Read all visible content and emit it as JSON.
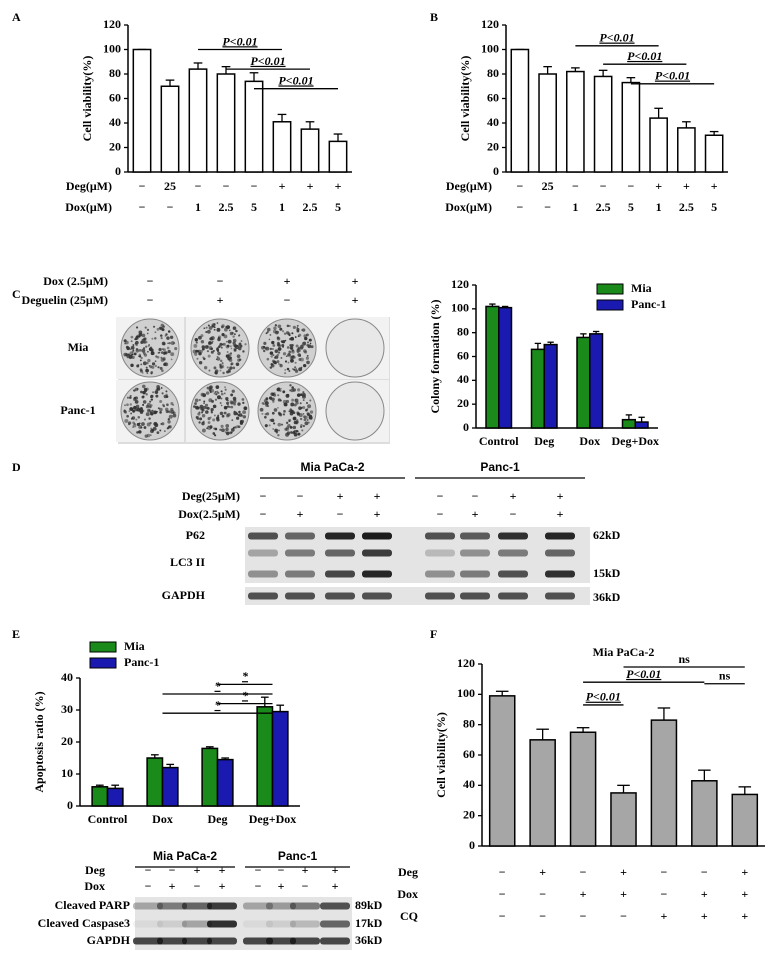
{
  "chart_data": [
    {
      "type": "bar",
      "panel": "A",
      "y_label": "Cell viability(%)",
      "ylim": [
        0,
        120
      ],
      "yticks": [
        0,
        20,
        40,
        60,
        80,
        100,
        120
      ],
      "series": [
        {
          "color": "#ffffff",
          "values": [
            100,
            70,
            84,
            80,
            74,
            41,
            35,
            25
          ],
          "errors": [
            0,
            5,
            5,
            6,
            7,
            6,
            6,
            6
          ]
        }
      ],
      "conditions": [
        {
          "label": "Deg(μM)",
          "values": [
            "−",
            "25",
            "−",
            "−",
            "−",
            "+",
            "+",
            "+"
          ]
        },
        {
          "label": "Dox(μM)",
          "values": [
            "−",
            "−",
            "1",
            "2.5",
            "5",
            "1",
            "2.5",
            "5"
          ]
        }
      ],
      "annotations": [
        {
          "text": "P<0.01",
          "color": "#cc0000"
        },
        {
          "text": "P<0.01",
          "color": "#cc0000"
        },
        {
          "text": "P<0.01",
          "color": "#cc0000"
        }
      ]
    },
    {
      "type": "bar",
      "panel": "B",
      "y_label": "Cell viability(%)",
      "ylim": [
        0,
        120
      ],
      "yticks": [
        0,
        20,
        40,
        60,
        80,
        100,
        120
      ],
      "series": [
        {
          "color": "#ffffff",
          "values": [
            100,
            80,
            82,
            78,
            73,
            44,
            36,
            30
          ],
          "errors": [
            0,
            6,
            3,
            5,
            4,
            8,
            5,
            3
          ]
        }
      ],
      "conditions": [
        {
          "label": "Deg(μM)",
          "values": [
            "−",
            "25",
            "−",
            "−",
            "−",
            "+",
            "+",
            "+"
          ]
        },
        {
          "label": "Dox(μM)",
          "values": [
            "−",
            "−",
            "1",
            "2.5",
            "5",
            "1",
            "2.5",
            "5"
          ]
        }
      ],
      "annotations": [
        {
          "text": "P<0.01",
          "color": "#cc0000"
        },
        {
          "text": "P<0.01",
          "color": "#cc0000"
        },
        {
          "text": "P<0.01",
          "color": "#cc0000"
        }
      ]
    },
    {
      "type": "bar",
      "y_label": "Colony formation (%)",
      "ylim": [
        0,
        120
      ],
      "yticks": [
        0,
        20,
        40,
        60,
        80,
        100,
        120
      ],
      "categories": [
        "Control",
        "Deg",
        "Dox",
        "Deg+Dox"
      ],
      "legend": "top-right",
      "series": [
        {
          "name": "Mia",
          "color": "#1a8a1a",
          "values": [
            102,
            66,
            76,
            7
          ],
          "errors": [
            2,
            5,
            3,
            4
          ]
        },
        {
          "name": "Panc-1",
          "color": "#1a1ab0",
          "values": [
            101,
            70,
            79,
            5
          ],
          "errors": [
            1,
            2,
            2,
            4
          ]
        }
      ]
    },
    {
      "type": "bar",
      "panel": "E",
      "y_label": "Apoptosis ratio (%)",
      "ylim": [
        0,
        40
      ],
      "yticks": [
        0,
        10,
        20,
        30,
        40
      ],
      "categories": [
        "Control",
        "Dox",
        "Deg",
        "Deg+Dox"
      ],
      "legend": "top-left",
      "series": [
        {
          "name": "Mia",
          "color": "#1a8a1a",
          "values": [
            6,
            15,
            18,
            31
          ],
          "errors": [
            0.5,
            1,
            0.5,
            3
          ]
        },
        {
          "name": "Panc-1",
          "color": "#1a1ab0",
          "values": [
            5.5,
            12,
            14.5,
            29.5
          ],
          "errors": [
            1,
            1,
            0.5,
            2
          ]
        }
      ],
      "annotations": [
        {
          "text": "*",
          "color": "#cc0000"
        },
        {
          "text": "*",
          "color": "#cc0000"
        },
        {
          "text": "*",
          "color": "#cc0000"
        },
        {
          "text": "*",
          "color": "#cc0000"
        }
      ]
    },
    {
      "type": "bar",
      "panel": "F",
      "title": "Mia PaCa-2",
      "y_label": "Cell viability(%)",
      "ylim": [
        0,
        120
      ],
      "yticks": [
        0,
        20,
        40,
        60,
        80,
        100,
        120
      ],
      "series": [
        {
          "color": "#a6a6a6",
          "values": [
            99,
            70,
            75,
            35,
            83,
            43,
            34
          ],
          "errors": [
            3,
            7,
            3,
            5,
            8,
            7,
            5
          ]
        }
      ],
      "conditions": [
        {
          "label": "Deg",
          "values": [
            "−",
            "+",
            "−",
            "+",
            "−",
            "−",
            "+"
          ]
        },
        {
          "label": "Dox",
          "values": [
            "−",
            "−",
            "+",
            "+",
            "−",
            "+",
            "+"
          ]
        },
        {
          "label": "CQ",
          "values": [
            "−",
            "−",
            "−",
            "−",
            "+",
            "+",
            "+"
          ]
        }
      ],
      "annotations": [
        {
          "text": "P<0.01",
          "color": "#cc0000"
        },
        {
          "text": "P<0.01",
          "color": "#cc0000"
        },
        {
          "text": "ns",
          "color": "#000000"
        },
        {
          "text": "ns",
          "color": "#000000"
        }
      ]
    }
  ],
  "colony": {
    "panel": "C",
    "conditions": [
      {
        "label": "Dox (2.5μM)",
        "values": [
          "−",
          "−",
          "+",
          "+"
        ]
      },
      {
        "label": "Deguelin (25μM)",
        "values": [
          "−",
          "+",
          "−",
          "+"
        ]
      }
    ],
    "rows": [
      "Mia",
      "Panc-1"
    ]
  },
  "blots": [
    {
      "panel": "D",
      "groups": [
        "Mia PaCa-2",
        "Panc-1"
      ],
      "conditions": [
        {
          "label": "Deg(25μM)",
          "values": [
            "−",
            "−",
            "+",
            "+",
            "−",
            "−",
            "+",
            "+"
          ]
        },
        {
          "label": "Dox(2.5μM)",
          "values": [
            "−",
            "+",
            "−",
            "+",
            "−",
            "+",
            "−",
            "+"
          ]
        }
      ],
      "rows": [
        {
          "label": "P62",
          "size": "62kD"
        },
        {
          "label": "LC3 II",
          "size": "15kD"
        },
        {
          "label": "GAPDH",
          "size": "36kD"
        }
      ]
    },
    {
      "groups": [
        "Mia PaCa-2",
        "Panc-1"
      ],
      "conditions": [
        {
          "label": "Deg",
          "values": [
            "−",
            "−",
            "+",
            "+",
            "−",
            "−",
            "+",
            "+"
          ]
        },
        {
          "label": "Dox",
          "values": [
            "−",
            "+",
            "−",
            "+",
            "−",
            "+",
            "−",
            "+"
          ]
        }
      ],
      "rows": [
        {
          "label": "Cleaved PARP",
          "size": "89kD"
        },
        {
          "label": "Cleaved Caspase3",
          "size": "17kD"
        },
        {
          "label": "GAPDH",
          "size": "36kD"
        }
      ]
    }
  ]
}
